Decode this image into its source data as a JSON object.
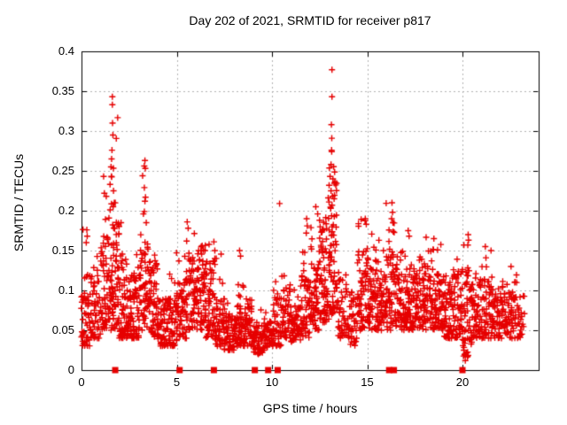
{
  "chart_data": {
    "type": "scatter",
    "title": "Day 202 of 2021, SRMTID for receiver p817",
    "xlabel": "GPS time / hours",
    "ylabel": "SRMTID / TECUs",
    "xlim": [
      0,
      24
    ],
    "ylim": [
      0,
      0.4
    ],
    "xticks": {
      "values": [
        0,
        5,
        10,
        15,
        20
      ],
      "labels": [
        "0",
        "5",
        "10",
        "15",
        "20"
      ]
    },
    "yticks": {
      "values": [
        0,
        0.05,
        0.1,
        0.15,
        0.2,
        0.25,
        0.3,
        0.35,
        0.4
      ],
      "labels": [
        "0",
        "0.05",
        "0.1",
        "0.15",
        "0.2",
        "0.25",
        "0.3",
        "0.35",
        "0.4"
      ]
    },
    "grid": "dotted",
    "legend": "none",
    "background_color": "#ffffff",
    "axis_color": "#000000",
    "grid_color": "#b3b3b3",
    "marker": {
      "shape": "plus",
      "color": "#e60000",
      "size": 7
    },
    "gap_marker": {
      "shape": "filled-square",
      "color": "#e60000",
      "size": 7,
      "y": 0
    },
    "gap_marker_x": [
      1.77,
      5.15,
      6.95,
      9.1,
      9.8,
      10.3,
      16.15,
      16.4,
      20.0
    ],
    "cluster_fields": [
      "x_start",
      "x_end",
      "count",
      "y_min",
      "y_typical_max",
      "y_tail_max"
    ],
    "point_clusters": [
      [
        0.0,
        0.5,
        55,
        0.03,
        0.12,
        0.19
      ],
      [
        0.5,
        1.0,
        50,
        0.04,
        0.12,
        0.17
      ],
      [
        1.0,
        1.5,
        60,
        0.05,
        0.16,
        0.24
      ],
      [
        1.5,
        2.0,
        80,
        0.05,
        0.2,
        0.34
      ],
      [
        2.0,
        2.5,
        70,
        0.04,
        0.14,
        0.19
      ],
      [
        2.5,
        3.0,
        60,
        0.04,
        0.12,
        0.16
      ],
      [
        3.0,
        3.5,
        60,
        0.05,
        0.16,
        0.26
      ],
      [
        3.5,
        4.0,
        60,
        0.04,
        0.13,
        0.16
      ],
      [
        4.0,
        4.5,
        55,
        0.03,
        0.09,
        0.12
      ],
      [
        4.5,
        5.0,
        55,
        0.03,
        0.09,
        0.13
      ],
      [
        5.0,
        5.5,
        55,
        0.04,
        0.11,
        0.15
      ],
      [
        5.5,
        6.0,
        55,
        0.05,
        0.14,
        0.18
      ],
      [
        6.0,
        6.5,
        65,
        0.05,
        0.15,
        0.17
      ],
      [
        6.5,
        7.0,
        60,
        0.04,
        0.14,
        0.16
      ],
      [
        7.0,
        7.5,
        55,
        0.03,
        0.09,
        0.15
      ],
      [
        7.5,
        8.0,
        55,
        0.025,
        0.07,
        0.09
      ],
      [
        8.0,
        8.5,
        60,
        0.03,
        0.08,
        0.15
      ],
      [
        8.5,
        9.0,
        55,
        0.03,
        0.08,
        0.1
      ],
      [
        9.0,
        9.5,
        50,
        0.02,
        0.06,
        0.08
      ],
      [
        9.5,
        10.0,
        45,
        0.025,
        0.06,
        0.08
      ],
      [
        10.0,
        10.5,
        50,
        0.03,
        0.09,
        0.12
      ],
      [
        10.5,
        11.0,
        50,
        0.04,
        0.1,
        0.13
      ],
      [
        11.0,
        11.5,
        50,
        0.035,
        0.08,
        0.11
      ],
      [
        11.5,
        12.0,
        55,
        0.04,
        0.12,
        0.18
      ],
      [
        12.0,
        12.5,
        60,
        0.05,
        0.13,
        0.2
      ],
      [
        12.5,
        13.0,
        75,
        0.06,
        0.19,
        0.26
      ],
      [
        13.0,
        13.4,
        70,
        0.07,
        0.24,
        0.31
      ],
      [
        13.4,
        14.0,
        50,
        0.04,
        0.12,
        0.16
      ],
      [
        14.0,
        14.5,
        45,
        0.03,
        0.1,
        0.14
      ],
      [
        14.5,
        15.0,
        60,
        0.05,
        0.15,
        0.19
      ],
      [
        15.0,
        15.5,
        60,
        0.05,
        0.14,
        0.18
      ],
      [
        15.5,
        16.0,
        60,
        0.05,
        0.13,
        0.17
      ],
      [
        16.0,
        16.5,
        60,
        0.05,
        0.15,
        0.21
      ],
      [
        16.5,
        17.0,
        55,
        0.05,
        0.12,
        0.15
      ],
      [
        17.0,
        17.5,
        60,
        0.05,
        0.13,
        0.17
      ],
      [
        17.5,
        18.0,
        60,
        0.05,
        0.12,
        0.16
      ],
      [
        18.0,
        18.5,
        60,
        0.05,
        0.13,
        0.17
      ],
      [
        18.5,
        19.0,
        60,
        0.05,
        0.12,
        0.16
      ],
      [
        19.0,
        19.5,
        55,
        0.04,
        0.11,
        0.14
      ],
      [
        19.5,
        20.0,
        55,
        0.04,
        0.12,
        0.15
      ],
      [
        20.0,
        20.5,
        60,
        0.015,
        0.13,
        0.17
      ],
      [
        20.5,
        21.0,
        55,
        0.04,
        0.11,
        0.14
      ],
      [
        21.0,
        21.5,
        55,
        0.04,
        0.12,
        0.15
      ],
      [
        21.5,
        22.0,
        55,
        0.04,
        0.1,
        0.13
      ],
      [
        22.0,
        22.5,
        50,
        0.04,
        0.1,
        0.13
      ],
      [
        22.5,
        23.0,
        45,
        0.04,
        0.11,
        0.13
      ],
      [
        23.0,
        23.25,
        15,
        0.04,
        0.09,
        0.1
      ]
    ],
    "outlier_points": [
      [
        0.28,
        0.176
      ],
      [
        0.3,
        0.168
      ],
      [
        0.25,
        0.16
      ],
      [
        1.16,
        0.243
      ],
      [
        1.2,
        0.222
      ],
      [
        1.3,
        0.218
      ],
      [
        1.57,
        0.243
      ],
      [
        1.62,
        0.343
      ],
      [
        1.62,
        0.333
      ],
      [
        1.63,
        0.31
      ],
      [
        1.65,
        0.295
      ],
      [
        1.6,
        0.276
      ],
      [
        1.58,
        0.265
      ],
      [
        1.55,
        0.255
      ],
      [
        1.5,
        0.233
      ],
      [
        1.68,
        0.225
      ],
      [
        1.72,
        0.21
      ],
      [
        1.66,
        0.205
      ],
      [
        3.33,
        0.263
      ],
      [
        3.35,
        0.253
      ],
      [
        3.3,
        0.229
      ],
      [
        3.36,
        0.217
      ],
      [
        3.33,
        0.212
      ],
      [
        3.3,
        0.199
      ],
      [
        3.25,
        0.196
      ],
      [
        3.4,
        0.185
      ],
      [
        5.55,
        0.186
      ],
      [
        5.6,
        0.178
      ],
      [
        5.52,
        0.162
      ],
      [
        6.95,
        0.161
      ],
      [
        7.0,
        0.15
      ],
      [
        8.3,
        0.15
      ],
      [
        8.35,
        0.143
      ],
      [
        10.4,
        0.209
      ],
      [
        11.82,
        0.19
      ],
      [
        11.85,
        0.181
      ],
      [
        11.8,
        0.172
      ],
      [
        12.3,
        0.205
      ],
      [
        12.4,
        0.196
      ],
      [
        13.15,
        0.377
      ],
      [
        13.15,
        0.343
      ],
      [
        13.12,
        0.308
      ],
      [
        13.14,
        0.291
      ],
      [
        13.13,
        0.276
      ],
      [
        13.1,
        0.258
      ],
      [
        13.05,
        0.243
      ],
      [
        13.2,
        0.24
      ],
      [
        13.0,
        0.232
      ],
      [
        13.1,
        0.225
      ],
      [
        13.18,
        0.218
      ],
      [
        14.9,
        0.19
      ],
      [
        14.95,
        0.183
      ],
      [
        16.3,
        0.21
      ],
      [
        16.33,
        0.198
      ],
      [
        16.28,
        0.19
      ],
      [
        16.35,
        0.185
      ],
      [
        17.15,
        0.175
      ],
      [
        17.2,
        0.168
      ],
      [
        18.5,
        0.165
      ],
      [
        20.3,
        0.17
      ],
      [
        20.32,
        0.163
      ],
      [
        20.28,
        0.157
      ],
      [
        20.15,
        0.02
      ],
      [
        20.15,
        0.012
      ],
      [
        21.2,
        0.155
      ],
      [
        21.5,
        0.15
      ],
      [
        22.55,
        0.13
      ]
    ],
    "seed": 20210721
  }
}
